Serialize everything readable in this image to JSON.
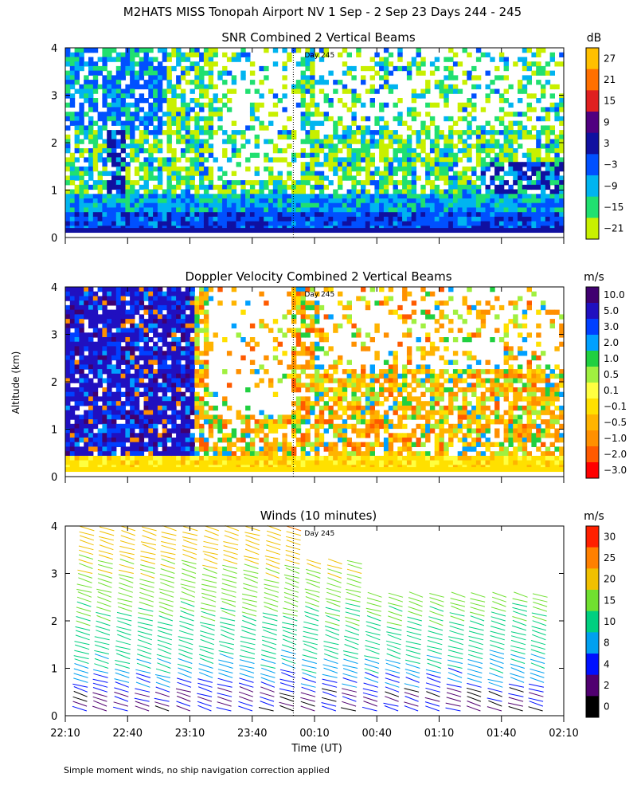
{
  "page_title": "M2HATS MISS Tonopah Airport NV   1 Sep -  2 Sep 23 Days 244 - 245",
  "footer_note": "Simple moment winds, no ship navigation correction applied",
  "shared": {
    "ylabel": "Altitude (km)",
    "xlabel": "Time (UT)",
    "y_ticks": [
      "0",
      "1",
      "2",
      "3",
      "4"
    ],
    "x_ticks": [
      "22:10",
      "22:40",
      "23:10",
      "23:40",
      "00:10",
      "00:40",
      "01:10",
      "01:40",
      "02:10"
    ],
    "day_marker": "Day 245"
  },
  "panels": [
    {
      "title": "SNR Combined 2 Vertical Beams",
      "unit": "dB",
      "colorbar_labels": [
        "27",
        "21",
        "15",
        "9",
        "3",
        "−3",
        "−9",
        "−15",
        "−21"
      ]
    },
    {
      "title": "Doppler Velocity Combined 2 Vertical Beams",
      "unit": "m/s",
      "colorbar_labels": [
        "10.0",
        "5.0",
        "3.0",
        "2.0",
        "1.0",
        "0.5",
        "0.1",
        "−0.1",
        "−0.5",
        "−1.0",
        "−2.0",
        "−3.0"
      ]
    },
    {
      "title": "Winds (10 minutes)",
      "unit": "m/s",
      "colorbar_labels": [
        "30",
        "25",
        "20",
        "15",
        "10",
        "8",
        "4",
        "2",
        "0"
      ]
    }
  ],
  "chart_data": [
    {
      "type": "heatmap",
      "title": "SNR Combined 2 Vertical Beams",
      "xlabel": "Time (UT)",
      "ylabel": "Altitude (km)",
      "xlim_hours_from_2210": [
        0,
        4
      ],
      "ylim": [
        0,
        4
      ],
      "unit": "dB",
      "colorscale_values": [
        -21,
        -15,
        -9,
        -3,
        3,
        9,
        15,
        21,
        27
      ],
      "colorscale": [
        "#c8f000",
        "#20e070",
        "#00b4f0",
        "#0050ff",
        "#1010a0",
        "#500080",
        "#e02020",
        "#ff7000",
        "#ffc000"
      ],
      "summary": "Strong SNR (-3 to 3 dB) below ~0.7 km throughout; patchy -21 to -9 dB returns up to 4 km, stronger 22:10-23:10; sparse aloft after 00:10; enhanced values near 0.3-1.5 km after 01:30"
    },
    {
      "type": "heatmap",
      "title": "Doppler Velocity Combined 2 Vertical Beams",
      "xlabel": "Time (UT)",
      "ylabel": "Altitude (km)",
      "xlim_hours_from_2210": [
        0,
        4
      ],
      "ylim": [
        0,
        4
      ],
      "unit": "m/s",
      "colorscale_values": [
        -3.0,
        -2.0,
        -1.0,
        -0.5,
        -0.1,
        0.1,
        0.5,
        1.0,
        2.0,
        3.0,
        5.0,
        10.0
      ],
      "colorscale": [
        "#ff0000",
        "#ff5a00",
        "#ff9000",
        "#ffb400",
        "#ffe000",
        "#ffff40",
        "#a0f040",
        "#20d040",
        "#00a0ff",
        "#0040ff",
        "#2010c0",
        "#400070"
      ],
      "summary": "Near-zero velocities (-0.1 to 0.1 m/s) below 0.5 km; strong positive 3-10 m/s columns 22:10-23:10 up to 4 km; mixed -2 to 1 m/s between 0.5 and 3 km later"
    },
    {
      "type": "scatter",
      "title": "Winds (10 minutes)",
      "xlabel": "Time (UT)",
      "ylabel": "Altitude (km)",
      "xlim_hours_from_2210": [
        0,
        4
      ],
      "ylim": [
        0,
        4
      ],
      "unit": "m/s",
      "colorscale_values": [
        0,
        2,
        4,
        8,
        10,
        15,
        20,
        25,
        30
      ],
      "colorscale": [
        "#000000",
        "#500070",
        "#0010ff",
        "#00a0f0",
        "#00d080",
        "#70e030",
        "#f0c000",
        "#ff8000",
        "#ff2000"
      ],
      "profile_times_hours": [
        0.17,
        0.33,
        0.5,
        0.67,
        0.83,
        1.0,
        1.17,
        1.33,
        1.5,
        1.67,
        1.83,
        2.0,
        2.17,
        2.33,
        2.5,
        2.67,
        2.83,
        3.0,
        3.17,
        3.33,
        3.5,
        3.67,
        3.83
      ],
      "summary": "Wind barbs every 10 min; speeds 2-8 m/s near surface increasing to 15-25 m/s above 3 km; profiles limited to ~2.5 km after 01:00"
    }
  ]
}
